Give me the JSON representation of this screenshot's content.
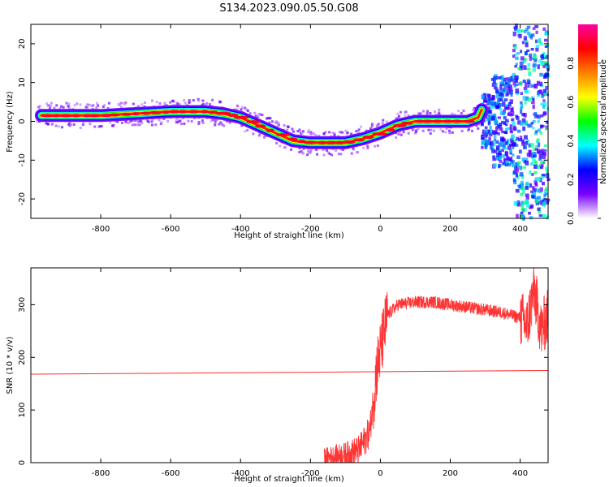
{
  "figure": {
    "title": "S134.2023.090.05.50.G08"
  },
  "chart_data": [
    {
      "type": "heatmap",
      "xlabel": "Height of straight line (km)",
      "ylabel": "Frequency (Hz)",
      "xlim": [
        -1000,
        480
      ],
      "ylim": [
        -25,
        25
      ],
      "xticks": [
        -800,
        -600,
        -400,
        -200,
        0,
        200,
        400
      ],
      "yticks": [
        20,
        10,
        0,
        -10,
        -20
      ],
      "colorbar": {
        "label": "Normalized spectral amplitude",
        "range": [
          0,
          1
        ],
        "ticks": [
          "0.0",
          "0.2",
          "0.4",
          "0.6",
          "0.8"
        ],
        "colors": [
          "#ffffff",
          "#7a00ff",
          "#0000ff",
          "#00ffff",
          "#00ff00",
          "#ffff00",
          "#ff7f00",
          "#ff0000",
          "#ff00a0"
        ]
      },
      "ridge": {
        "description_points_km": [
          -970,
          -800,
          -700,
          -600,
          -500,
          -450,
          -400,
          -350,
          -300,
          -250,
          -200,
          -150,
          -100,
          -50,
          0,
          50,
          100,
          150,
          200,
          250,
          280,
          290
        ],
        "frequency_hz": [
          1.5,
          1.5,
          2,
          2.5,
          2.5,
          2,
          1,
          -1,
          -3,
          -5,
          -5.5,
          -5.5,
          -5.5,
          -4.5,
          -3,
          -1,
          0,
          0,
          0,
          0,
          1,
          3
        ]
      },
      "grid": false
    },
    {
      "type": "line",
      "xlabel": "Height of straight line (km)",
      "ylabel": "SNR (10 * v/v)",
      "xlim": [
        -1000,
        480
      ],
      "ylim": [
        0,
        370
      ],
      "xticks": [
        -800,
        -600,
        -400,
        -200,
        0,
        200,
        400
      ],
      "yticks": [
        0,
        100,
        200,
        300
      ],
      "series": [
        {
          "color": "#ff2a2a",
          "x": [
            -160,
            -100,
            -60,
            -30,
            -10,
            0,
            20,
            50,
            100,
            150,
            200,
            250,
            300,
            350,
            400,
            420,
            440,
            460,
            480
          ],
          "y": [
            10,
            15,
            25,
            60,
            180,
            210,
            280,
            300,
            305,
            305,
            300,
            295,
            290,
            285,
            275,
            260,
            330,
            250,
            280
          ]
        },
        {
          "color": "#ff2a2a",
          "x": [
            -1000,
            480
          ],
          "y": [
            168,
            175
          ]
        }
      ],
      "grid": false
    }
  ]
}
